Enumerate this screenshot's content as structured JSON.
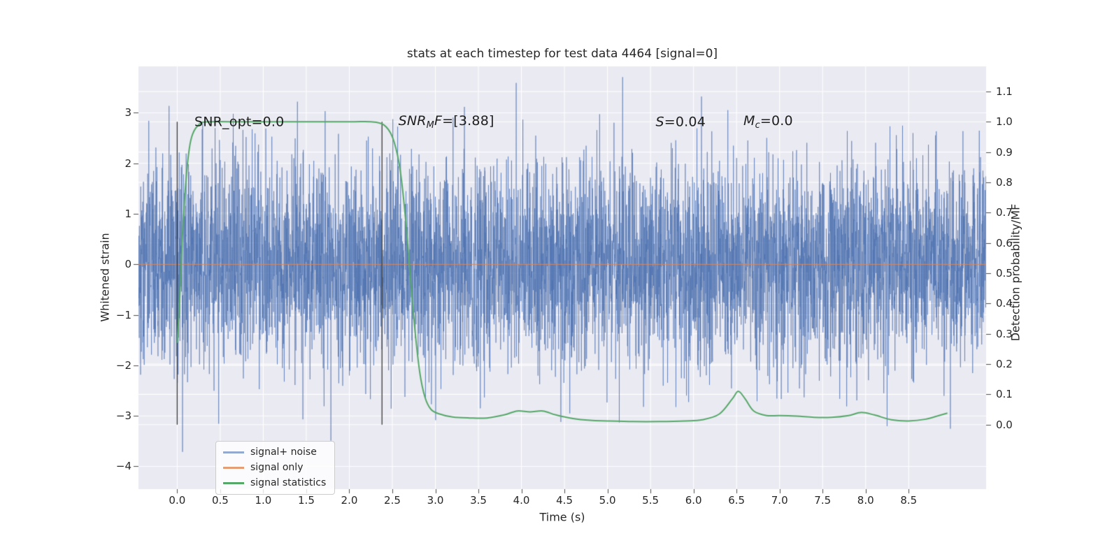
{
  "chart_data": {
    "type": "line",
    "title": "stats at each timestep for test data 4464 [signal=0]",
    "xlabel": "Time (s)",
    "ylabel_left": "Whitened strain",
    "ylabel_right": "Detection probability/MF",
    "xlim": [
      -0.45,
      9.4
    ],
    "ylim_left": [
      -4.45,
      3.92
    ],
    "ylim_right": [
      -0.213,
      1.183
    ],
    "xticks": [
      0.0,
      0.5,
      1.0,
      1.5,
      2.0,
      2.5,
      3.0,
      3.5,
      4.0,
      4.5,
      5.0,
      5.5,
      6.0,
      6.5,
      7.0,
      7.5,
      8.0,
      8.5
    ],
    "yticks_left": [
      3,
      2,
      1,
      0,
      -1,
      -2,
      -3,
      -4
    ],
    "yticks_right": [
      1.1,
      1.0,
      0.9,
      0.8,
      0.7,
      0.6,
      0.5,
      0.4,
      0.3,
      0.2,
      0.1,
      0.0
    ],
    "grid": true,
    "background": "#eaeaf2",
    "grid_color": "#ffffff",
    "legend_position": "lower left",
    "series": [
      {
        "name": "signal+ noise",
        "axis": "left",
        "kind": "gaussian_noise",
        "mean": 0,
        "std": 1.0,
        "n": 5600,
        "t_start": -0.45,
        "t_end": 9.4,
        "seed": 4464,
        "color": "#4c72b0",
        "alpha": 0.6,
        "lw": 1
      },
      {
        "name": "signal only",
        "axis": "left",
        "kind": "constant",
        "value": 0,
        "t_start": -0.45,
        "t_end": 9.4,
        "color": "#dd8452",
        "alpha": 0.8,
        "lw": 1.3
      },
      {
        "name": "signal statistics",
        "axis": "right",
        "kind": "curve",
        "color": "#55a868",
        "alpha": 1,
        "lw": 2,
        "points": [
          [
            0.0,
            0.27
          ],
          [
            0.03,
            0.42
          ],
          [
            0.06,
            0.62
          ],
          [
            0.1,
            0.8
          ],
          [
            0.14,
            0.91
          ],
          [
            0.18,
            0.96
          ],
          [
            0.25,
            0.99
          ],
          [
            0.35,
            1.0
          ],
          [
            0.8,
            1.0
          ],
          [
            1.4,
            1.0
          ],
          [
            2.0,
            1.0
          ],
          [
            2.25,
            1.0
          ],
          [
            2.4,
            0.99
          ],
          [
            2.5,
            0.95
          ],
          [
            2.58,
            0.86
          ],
          [
            2.64,
            0.72
          ],
          [
            2.7,
            0.52
          ],
          [
            2.76,
            0.32
          ],
          [
            2.82,
            0.17
          ],
          [
            2.88,
            0.09
          ],
          [
            2.95,
            0.05
          ],
          [
            3.05,
            0.035
          ],
          [
            3.2,
            0.025
          ],
          [
            3.4,
            0.022
          ],
          [
            3.6,
            0.022
          ],
          [
            3.8,
            0.032
          ],
          [
            3.95,
            0.045
          ],
          [
            4.1,
            0.042
          ],
          [
            4.25,
            0.045
          ],
          [
            4.4,
            0.032
          ],
          [
            4.6,
            0.02
          ],
          [
            4.8,
            0.014
          ],
          [
            5.0,
            0.012
          ],
          [
            5.3,
            0.01
          ],
          [
            5.6,
            0.01
          ],
          [
            5.9,
            0.012
          ],
          [
            6.1,
            0.016
          ],
          [
            6.3,
            0.035
          ],
          [
            6.45,
            0.085
          ],
          [
            6.52,
            0.11
          ],
          [
            6.6,
            0.085
          ],
          [
            6.7,
            0.045
          ],
          [
            6.85,
            0.03
          ],
          [
            7.0,
            0.03
          ],
          [
            7.2,
            0.028
          ],
          [
            7.4,
            0.024
          ],
          [
            7.6,
            0.024
          ],
          [
            7.8,
            0.03
          ],
          [
            7.95,
            0.04
          ],
          [
            8.1,
            0.032
          ],
          [
            8.3,
            0.016
          ],
          [
            8.5,
            0.012
          ],
          [
            8.7,
            0.018
          ],
          [
            8.85,
            0.03
          ],
          [
            8.95,
            0.038
          ]
        ]
      }
    ],
    "vlines": [
      {
        "x": 0.0,
        "ymin": 0.0,
        "ymax": 1.0,
        "axis": "right",
        "color": "#3a3a3a",
        "lw": 1.3
      },
      {
        "x": 2.38,
        "ymin": 0.0,
        "ymax": 1.0,
        "axis": "right",
        "color": "#3a3a3a",
        "lw": 1.3
      }
    ],
    "annotations": [
      {
        "x": 0.2,
        "y": 2.82,
        "parts": [
          {
            "text": "SNR_opt=0.0",
            "italic": false,
            "sub": false
          }
        ]
      },
      {
        "x": 2.57,
        "y": 2.82,
        "parts": [
          {
            "text": "SNR",
            "italic": true,
            "sub": false
          },
          {
            "text": "M",
            "italic": true,
            "sub": true
          },
          {
            "text": "F",
            "italic": true,
            "sub": false
          },
          {
            "text": "=[3.88]",
            "italic": false,
            "sub": false
          }
        ]
      },
      {
        "x": 5.56,
        "y": 2.82,
        "parts": [
          {
            "text": "S",
            "italic": true,
            "sub": false
          },
          {
            "text": "=0.04",
            "italic": false,
            "sub": false
          }
        ]
      },
      {
        "x": 6.58,
        "y": 2.82,
        "parts": [
          {
            "text": "M",
            "italic": true,
            "sub": false
          },
          {
            "text": "c",
            "italic": true,
            "sub": true
          },
          {
            "text": "=0.0",
            "italic": false,
            "sub": false
          }
        ]
      }
    ]
  }
}
